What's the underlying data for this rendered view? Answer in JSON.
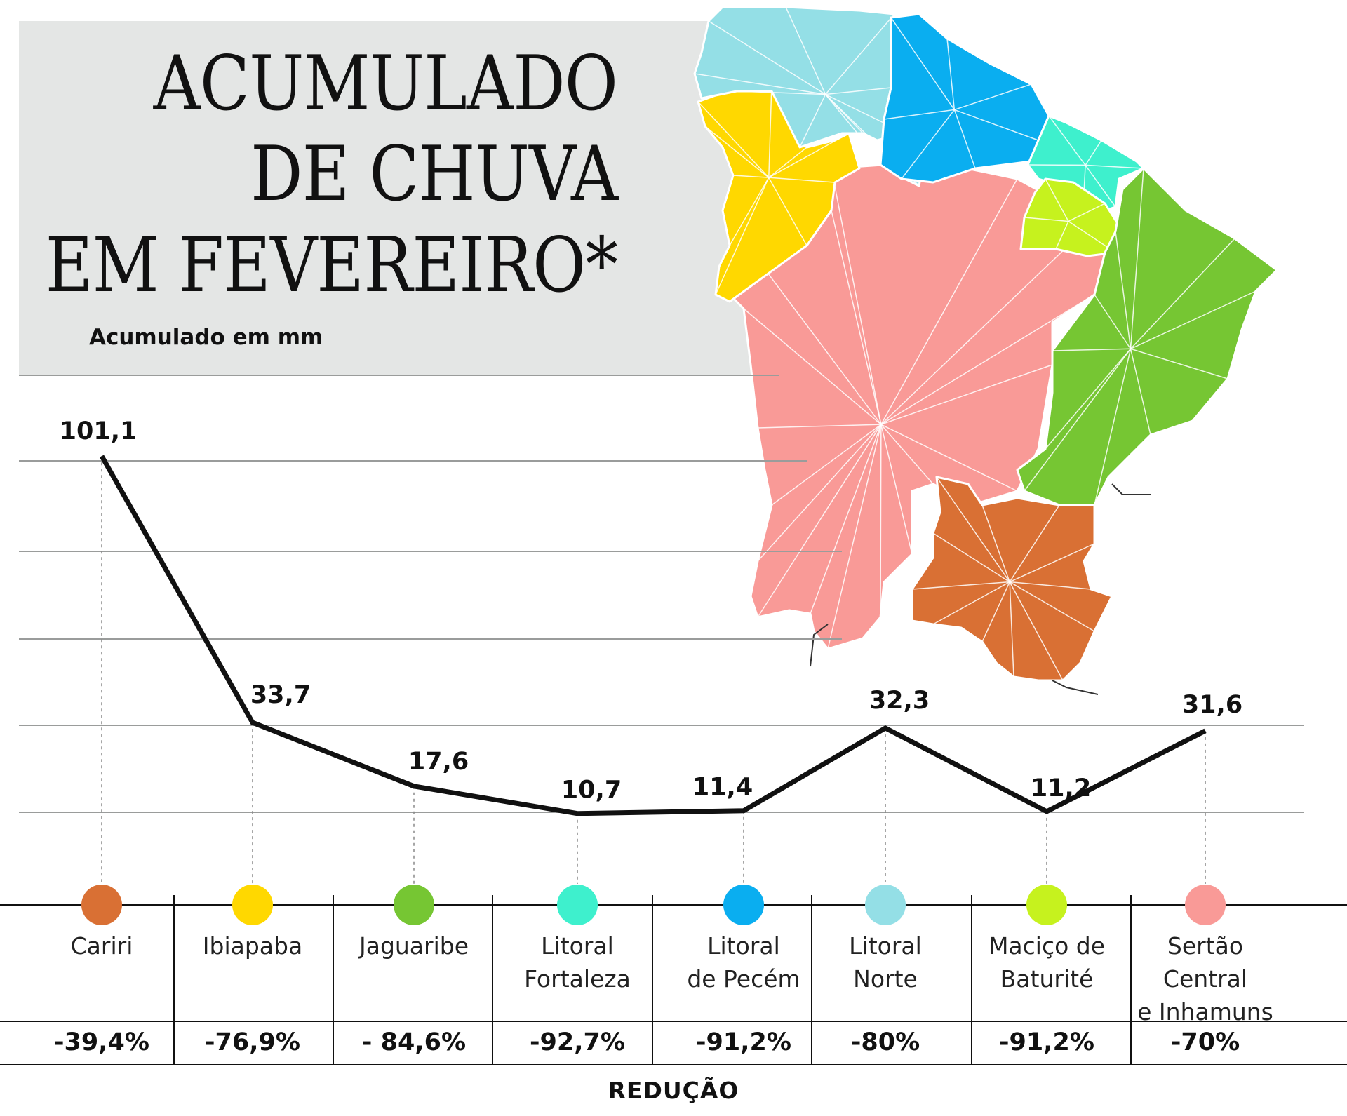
{
  "title_lines": [
    "ACUMULADO",
    "DE CHUVA",
    "EM FEVEREIRO*"
  ],
  "subtitle": "Acumulado em mm",
  "reduction_title": "REDUÇÃO",
  "chart_data": {
    "type": "line",
    "title": "ACUMULADO DE CHUVA EM FEVEREIRO*",
    "ylabel": "Acumulado em mm",
    "ylim": [
      0,
      101.1
    ],
    "categories": [
      "Cariri",
      "Ibiapaba",
      "Jaguaribe",
      "Litoral\nFortaleza",
      "Litoral\nde Pecém",
      "Litoral\nNorte",
      "Maciço de\nBaturité",
      "Sertão Central\ne Inhamuns"
    ],
    "values": [
      101.1,
      33.7,
      17.6,
      10.7,
      11.4,
      32.3,
      11.2,
      31.6
    ],
    "value_labels": [
      "101,1",
      "33,7",
      "17,6",
      "10,7",
      "11,4",
      "32,3",
      "11,2",
      "31,6"
    ],
    "reductions": [
      "-39,4%",
      "-76,9%",
      "- 84,6%",
      "-92,7%",
      "-91,2%",
      "-80%",
      "-91,2%",
      "-70%"
    ],
    "colors": [
      "#d97034",
      "#ffd800",
      "#76c633",
      "#3ef0cd",
      "#0aaef0",
      "#94dfe6",
      "#c6f21e",
      "#f99a97"
    ],
    "grid": true
  }
}
